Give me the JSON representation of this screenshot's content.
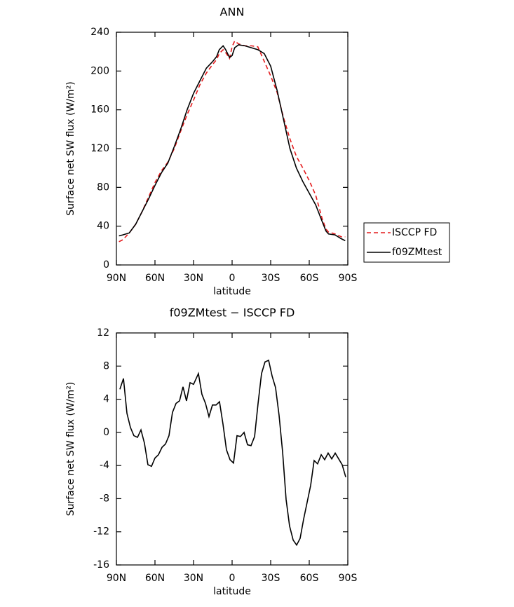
{
  "chart_data": [
    {
      "type": "line",
      "title": "ANN",
      "xlabel": "latitude",
      "ylabel": "Surface net SW flux (W/m²)",
      "x": [
        88,
        85,
        80,
        75,
        70,
        65,
        60,
        55,
        50,
        45,
        40,
        35,
        30,
        25,
        20,
        15,
        12,
        10,
        7,
        5,
        2,
        0,
        -2,
        -5,
        -10,
        -15,
        -20,
        -25,
        -30,
        -35,
        -40,
        -45,
        -50,
        -55,
        -60,
        -65,
        -70,
        -73,
        -75,
        -80,
        -85,
        -88
      ],
      "series": [
        {
          "name": "ISCCP FD",
          "color": "#e41a1c",
          "dashed": true,
          "values": [
            24,
            26,
            33,
            42,
            55,
            70,
            85,
            97,
            106,
            120,
            138,
            155,
            170,
            186,
            198,
            207,
            212,
            218,
            222,
            219,
            213,
            225,
            231,
            228,
            226,
            226,
            225,
            210,
            195,
            178,
            152,
            130,
            112,
            100,
            87,
            72,
            48,
            37,
            34,
            32,
            29,
            29
          ]
        },
        {
          "name": "f09ZMtest",
          "color": "#000000",
          "dashed": false,
          "values": [
            30,
            31,
            33,
            42,
            55,
            68,
            82,
            95,
            105,
            122,
            140,
            160,
            177,
            190,
            203,
            210,
            215,
            222,
            226,
            222,
            214,
            216,
            224,
            227,
            226,
            224,
            222,
            218,
            205,
            180,
            150,
            120,
            100,
            86,
            74,
            62,
            45,
            35,
            32,
            31,
            27,
            25
          ]
        }
      ],
      "xlim": [
        90,
        -90
      ],
      "xticks": [
        {
          "value": 90,
          "label": "90N"
        },
        {
          "value": 60,
          "label": "60N"
        },
        {
          "value": 30,
          "label": "30N"
        },
        0,
        {
          "value": -30,
          "label": "30S"
        },
        {
          "value": -60,
          "label": "60S"
        },
        {
          "value": -90,
          "label": "90S"
        }
      ],
      "ylim": [
        0,
        240
      ],
      "yticks": [
        0,
        40,
        80,
        120,
        160,
        200,
        240
      ],
      "legend": "right"
    },
    {
      "type": "line",
      "title": "f09ZMtest − ISCCP FD",
      "xlabel": "latitude",
      "ylabel": "Surface net SW flux (W/m²)",
      "x": [
        87.3,
        84.5,
        81.8,
        79.1,
        76.4,
        73.6,
        70.9,
        68.2,
        65.5,
        62.7,
        60.0,
        57.3,
        54.5,
        51.8,
        49.1,
        46.4,
        43.6,
        40.9,
        38.2,
        35.5,
        32.7,
        30.0,
        26.2,
        23.5,
        20.7,
        18.0,
        15.3,
        12.5,
        9.8,
        7.1,
        4.4,
        1.6,
        -1.1,
        -3.8,
        -6.5,
        -9.3,
        -12.0,
        -14.7,
        -17.5,
        -20.2,
        -22.9,
        -25.6,
        -28.4,
        -31.1,
        -33.8,
        -36.5,
        -39.3,
        -42.0,
        -44.7,
        -47.5,
        -50.2,
        -52.9,
        -55.6,
        -61.1,
        -63.8,
        -66.5,
        -69.3,
        -72.0,
        -74.7,
        -77.5,
        -80.2,
        -82.9,
        -85.6,
        -88.4
      ],
      "series": [
        {
          "name": "f09ZMtest − ISCCP FD",
          "color": "#000000",
          "values": [
            5.2,
            6.5,
            2.3,
            0.6,
            -0.4,
            -0.6,
            0.3,
            -1.3,
            -3.9,
            -4.1,
            -3.1,
            -2.7,
            -1.8,
            -1.4,
            -0.4,
            2.4,
            3.5,
            3.8,
            5.5,
            3.8,
            6.0,
            5.8,
            7.1,
            4.6,
            3.5,
            1.9,
            3.3,
            3.3,
            3.7,
            1.0,
            -2.1,
            -3.3,
            -3.7,
            -0.4,
            -0.5,
            0.0,
            -1.5,
            -1.6,
            -0.5,
            3.5,
            7.1,
            8.5,
            8.7,
            6.8,
            5.4,
            2.1,
            -2.4,
            -8.1,
            -11.3,
            -13.0,
            -13.6,
            -12.8,
            -10.5,
            -6.4,
            -3.4,
            -3.8,
            -2.7,
            -3.3,
            -2.5,
            -3.2,
            -2.5,
            -3.2,
            -3.9,
            -5.4
          ]
        }
      ],
      "xlim": [
        90,
        -90
      ],
      "xticks": [
        {
          "value": 90,
          "label": "90N"
        },
        {
          "value": 60,
          "label": "60N"
        },
        {
          "value": 30,
          "label": "30N"
        },
        0,
        {
          "value": -30,
          "label": "30S"
        },
        {
          "value": -60,
          "label": "60S"
        },
        {
          "value": -90,
          "label": "90S"
        }
      ],
      "ylim": [
        -16,
        12
      ],
      "yticks": [
        -16,
        -12,
        -8,
        -4,
        0,
        4,
        8,
        12
      ]
    }
  ]
}
